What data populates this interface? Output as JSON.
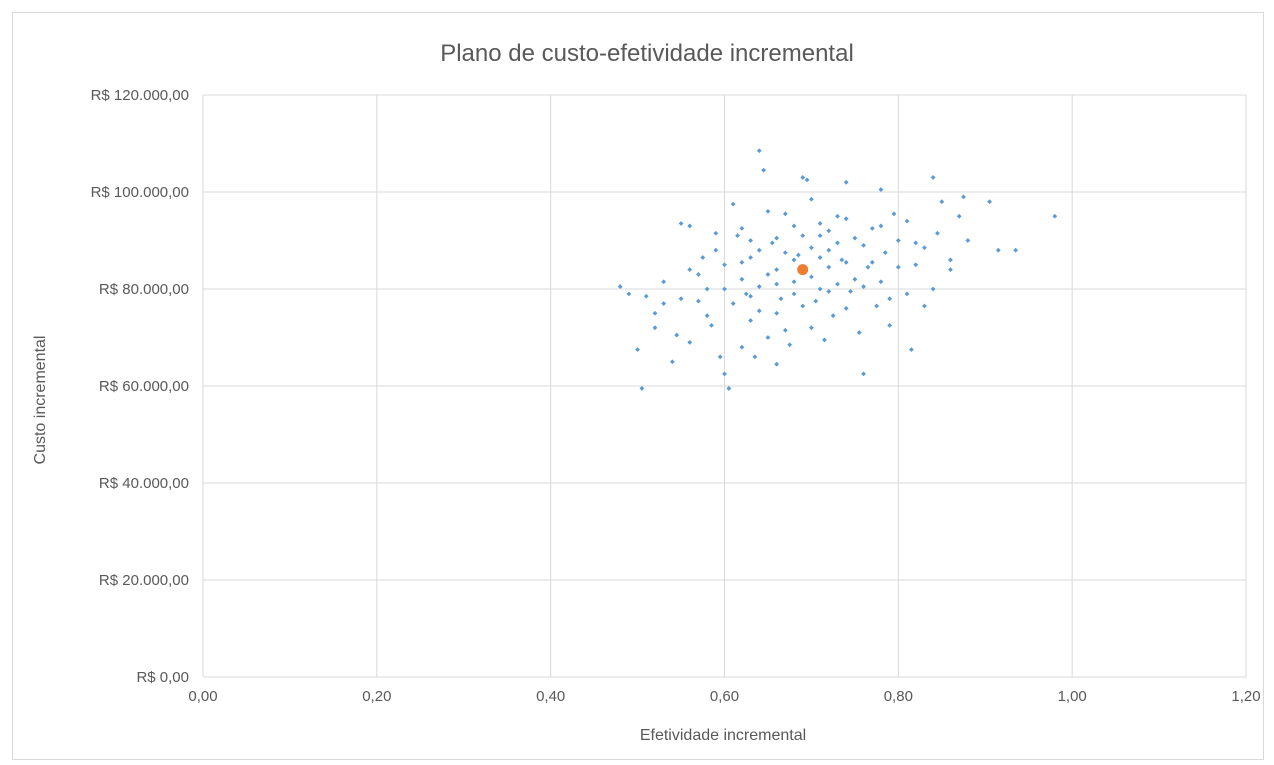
{
  "chart_data": {
    "type": "scatter",
    "title": "Plano de custo-efetividade incremental",
    "xlabel": "Efetividade incremental",
    "ylabel": "Custo incremental",
    "xlim": [
      0,
      1.2
    ],
    "ylim": [
      0,
      120000
    ],
    "x_ticks": [
      "0,00",
      "0,20",
      "0,40",
      "0,60",
      "0,80",
      "1,00",
      "1,20"
    ],
    "y_ticks": [
      "R$ 0,00",
      "R$ 20.000,00",
      "R$ 40.000,00",
      "R$ 60.000,00",
      "R$ 80.000,00",
      "R$ 100.000,00",
      "R$ 120.000,00"
    ],
    "grid": true,
    "legend": "none",
    "colors": {
      "simulations": "#5b9bd5",
      "mean": "#ed7d31"
    },
    "series": [
      {
        "values": [
          [
            0.48,
            80500
          ],
          [
            0.49,
            79000
          ],
          [
            0.5,
            67500
          ],
          [
            0.505,
            59500
          ],
          [
            0.51,
            78500
          ],
          [
            0.52,
            75000
          ],
          [
            0.53,
            81500
          ],
          [
            0.54,
            65000
          ],
          [
            0.545,
            70500
          ],
          [
            0.55,
            93500
          ],
          [
            0.56,
            93000
          ],
          [
            0.56,
            84000
          ],
          [
            0.57,
            77500
          ],
          [
            0.575,
            86500
          ],
          [
            0.58,
            80000
          ],
          [
            0.585,
            72500
          ],
          [
            0.59,
            88000
          ],
          [
            0.595,
            66000
          ],
          [
            0.6,
            62500
          ],
          [
            0.605,
            59500
          ],
          [
            0.61,
            97500
          ],
          [
            0.615,
            91000
          ],
          [
            0.62,
            85500
          ],
          [
            0.625,
            79000
          ],
          [
            0.63,
            73500
          ],
          [
            0.635,
            66000
          ],
          [
            0.64,
            108500
          ],
          [
            0.645,
            104500
          ],
          [
            0.65,
            96000
          ],
          [
            0.655,
            89500
          ],
          [
            0.66,
            84000
          ],
          [
            0.665,
            78000
          ],
          [
            0.67,
            71500
          ],
          [
            0.675,
            68500
          ],
          [
            0.68,
            93000
          ],
          [
            0.685,
            87000
          ],
          [
            0.69,
            103000
          ],
          [
            0.695,
            102500
          ],
          [
            0.7,
            82500
          ],
          [
            0.705,
            77500
          ],
          [
            0.71,
            91000
          ],
          [
            0.715,
            69500
          ],
          [
            0.72,
            88000
          ],
          [
            0.725,
            74500
          ],
          [
            0.73,
            95000
          ],
          [
            0.735,
            86000
          ],
          [
            0.74,
            102000
          ],
          [
            0.745,
            79500
          ],
          [
            0.75,
            90500
          ],
          [
            0.755,
            71000
          ],
          [
            0.76,
            62500
          ],
          [
            0.765,
            84500
          ],
          [
            0.77,
            92500
          ],
          [
            0.775,
            76500
          ],
          [
            0.78,
            100500
          ],
          [
            0.785,
            87500
          ],
          [
            0.79,
            72500
          ],
          [
            0.795,
            95500
          ],
          [
            0.8,
            84500
          ],
          [
            0.81,
            79000
          ],
          [
            0.815,
            67500
          ],
          [
            0.82,
            89500
          ],
          [
            0.83,
            76500
          ],
          [
            0.84,
            103000
          ],
          [
            0.845,
            91500
          ],
          [
            0.85,
            98000
          ],
          [
            0.86,
            86000
          ],
          [
            0.87,
            95000
          ],
          [
            0.875,
            99000
          ],
          [
            0.88,
            90000
          ],
          [
            0.905,
            98000
          ],
          [
            0.915,
            88000
          ],
          [
            0.935,
            88000
          ],
          [
            0.98,
            95000
          ],
          [
            0.6,
            85000
          ],
          [
            0.62,
            92500
          ],
          [
            0.64,
            80500
          ],
          [
            0.66,
            75000
          ],
          [
            0.68,
            81500
          ],
          [
            0.7,
            88500
          ],
          [
            0.72,
            79500
          ],
          [
            0.74,
            85500
          ],
          [
            0.66,
            90500
          ],
          [
            0.7,
            72000
          ],
          [
            0.63,
            86500
          ],
          [
            0.67,
            95500
          ],
          [
            0.71,
            93500
          ],
          [
            0.75,
            82000
          ],
          [
            0.77,
            85500
          ],
          [
            0.65,
            70000
          ],
          [
            0.69,
            76500
          ],
          [
            0.73,
            81000
          ],
          [
            0.58,
            74500
          ],
          [
            0.61,
            77000
          ],
          [
            0.64,
            88000
          ],
          [
            0.68,
            86000
          ],
          [
            0.72,
            84500
          ],
          [
            0.76,
            89000
          ],
          [
            0.78,
            81500
          ],
          [
            0.62,
            68000
          ],
          [
            0.66,
            64500
          ],
          [
            0.7,
            98500
          ],
          [
            0.74,
            76000
          ],
          [
            0.55,
            78000
          ],
          [
            0.57,
            83000
          ],
          [
            0.59,
            91500
          ],
          [
            0.63,
            78500
          ],
          [
            0.67,
            87500
          ],
          [
            0.71,
            86500
          ],
          [
            0.79,
            78000
          ],
          [
            0.82,
            85000
          ],
          [
            0.84,
            80000
          ],
          [
            0.65,
            83000
          ],
          [
            0.69,
            91000
          ],
          [
            0.73,
            89500
          ],
          [
            0.6,
            80000
          ],
          [
            0.52,
            72000
          ],
          [
            0.53,
            77000
          ],
          [
            0.56,
            69000
          ],
          [
            0.62,
            82000
          ],
          [
            0.64,
            75500
          ],
          [
            0.68,
            79000
          ],
          [
            0.72,
            92000
          ],
          [
            0.76,
            80500
          ],
          [
            0.8,
            90000
          ],
          [
            0.81,
            94000
          ],
          [
            0.83,
            88500
          ],
          [
            0.69,
            84500
          ],
          [
            0.66,
            81000
          ],
          [
            0.63,
            90000
          ],
          [
            0.71,
            80000
          ],
          [
            0.74,
            94500
          ],
          [
            0.78,
            93000
          ],
          [
            0.86,
            84000
          ]
        ]
      },
      {
        "values": [
          [
            0.69,
            84000
          ]
        ]
      }
    ]
  }
}
